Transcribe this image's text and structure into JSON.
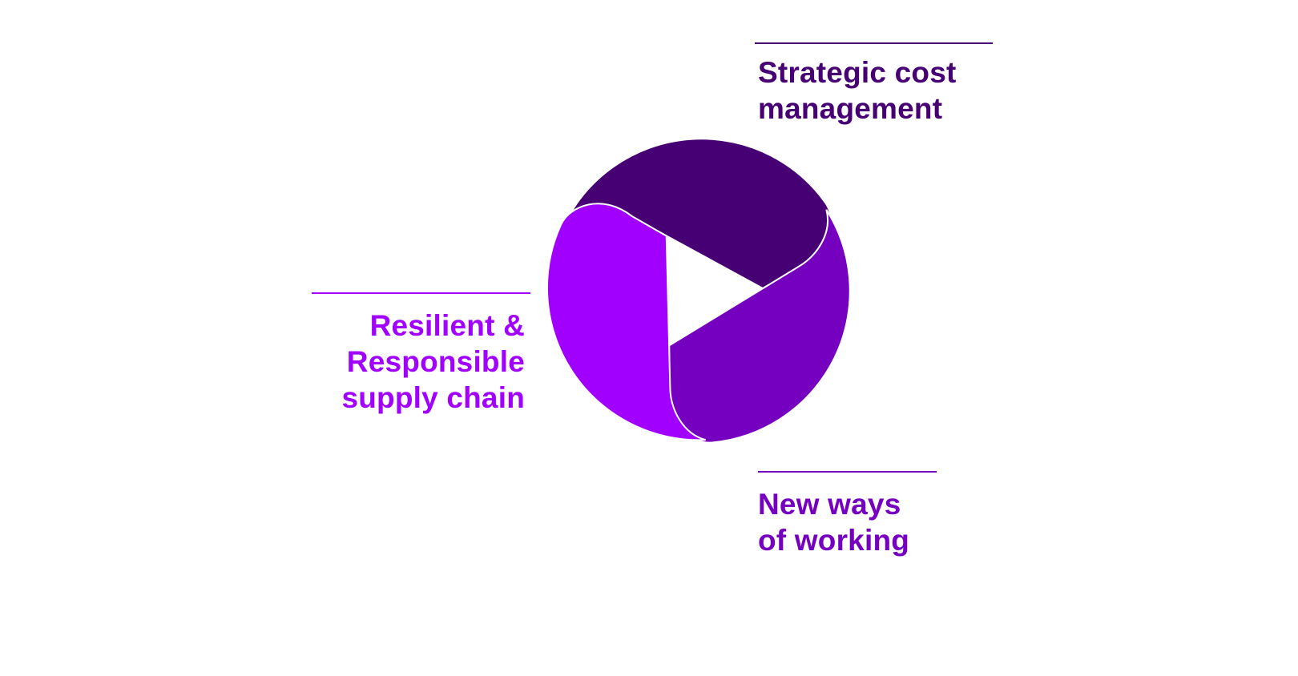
{
  "diagram": {
    "colors": {
      "strategic": "#460073",
      "new_ways": "#7500c0",
      "resilient": "#a100ff",
      "center": "#ffffff"
    },
    "center_icon": "play-triangle-icon",
    "labels": {
      "strategic": [
        "Strategic cost",
        "management"
      ],
      "resilient": [
        "Resilient &",
        "Responsible",
        "supply chain"
      ],
      "new_ways": [
        "New ways",
        "of working"
      ]
    }
  }
}
